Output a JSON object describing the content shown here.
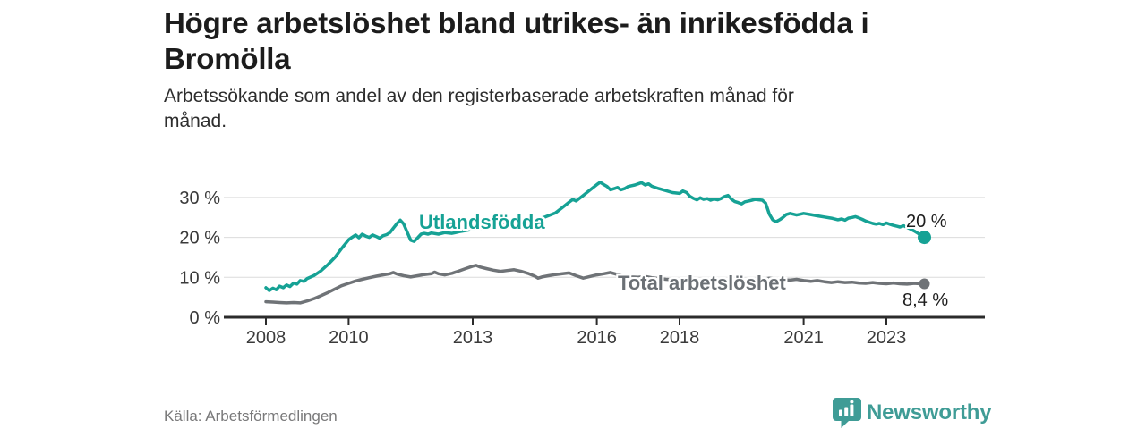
{
  "header": {
    "title_lines": [
      "Högre arbetslöshet bland utrikes- än inrikesfödda i",
      "Bromölla"
    ],
    "subtitle_lines": [
      "Arbetssökande som andel av den registerbaserade arbetskraften månad för",
      "månad."
    ]
  },
  "footer": {
    "source": "Källa: Arbetsförmedlingen",
    "brand": "Newsworthy",
    "logo_icon": "speech-bubble-bar-chart-icon"
  },
  "colors": {
    "foreign_series": "#16a295",
    "total_series": "#6f7377",
    "axis": "#2b2b2b",
    "gridline": "#dcdcdc",
    "title_text": "#1c1c1c",
    "muted_text": "#79797a",
    "brand_teal": "#3f9c96"
  },
  "chart_data": {
    "type": "line",
    "title": "Högre arbetslöshet bland utrikes- än inrikesfödda i Bromölla",
    "subtitle": "Arbetssökande som andel av den registerbaserade arbetskraften månad för månad.",
    "source": "Källa: Arbetsförmedlingen",
    "grid": true,
    "legend_position": "inline-on-line",
    "x_axis": {
      "unit": "year",
      "range": [
        2007.0,
        2024.4
      ],
      "ticks": [
        {
          "value": 2008,
          "label": "2008"
        },
        {
          "value": 2010,
          "label": "2010"
        },
        {
          "value": 2013,
          "label": "2013"
        },
        {
          "value": 2016,
          "label": "2016"
        },
        {
          "value": 2018,
          "label": "2018"
        },
        {
          "value": 2021,
          "label": "2021"
        },
        {
          "value": 2023,
          "label": "2023"
        }
      ]
    },
    "y_axis": {
      "unit": "percent",
      "range": [
        0,
        37
      ],
      "ticks": [
        {
          "value": 0,
          "label": "0 %"
        },
        {
          "value": 10,
          "label": "10 %"
        },
        {
          "value": 20,
          "label": "20 %"
        },
        {
          "value": 30,
          "label": "30 %"
        }
      ]
    },
    "series": [
      {
        "name": "Utlandsfödda",
        "color": "#16a295",
        "end_label": "20 %",
        "end_value": 20,
        "points": [
          [
            2008.0,
            7.4
          ],
          [
            2008.08,
            6.7
          ],
          [
            2008.17,
            7.3
          ],
          [
            2008.25,
            6.9
          ],
          [
            2008.33,
            7.8
          ],
          [
            2008.42,
            7.4
          ],
          [
            2008.5,
            8.1
          ],
          [
            2008.58,
            7.7
          ],
          [
            2008.67,
            8.6
          ],
          [
            2008.75,
            8.3
          ],
          [
            2008.83,
            9.2
          ],
          [
            2008.92,
            9.0
          ],
          [
            2009.0,
            9.7
          ],
          [
            2009.17,
            10.5
          ],
          [
            2009.33,
            11.6
          ],
          [
            2009.5,
            13.2
          ],
          [
            2009.67,
            15.0
          ],
          [
            2009.83,
            17.2
          ],
          [
            2010.0,
            19.4
          ],
          [
            2010.08,
            20.0
          ],
          [
            2010.17,
            20.6
          ],
          [
            2010.25,
            19.9
          ],
          [
            2010.33,
            20.8
          ],
          [
            2010.42,
            20.3
          ],
          [
            2010.5,
            20.0
          ],
          [
            2010.58,
            20.6
          ],
          [
            2010.67,
            20.2
          ],
          [
            2010.75,
            19.8
          ],
          [
            2010.83,
            20.4
          ],
          [
            2010.92,
            20.7
          ],
          [
            2011.0,
            21.2
          ],
          [
            2011.08,
            22.3
          ],
          [
            2011.17,
            23.5
          ],
          [
            2011.25,
            24.3
          ],
          [
            2011.33,
            23.4
          ],
          [
            2011.42,
            21.2
          ],
          [
            2011.5,
            19.3
          ],
          [
            2011.58,
            19.0
          ],
          [
            2011.67,
            19.9
          ],
          [
            2011.75,
            20.8
          ],
          [
            2011.83,
            21.0
          ],
          [
            2011.92,
            20.8
          ],
          [
            2012.0,
            21.1
          ],
          [
            2012.17,
            20.8
          ],
          [
            2012.33,
            21.2
          ],
          [
            2012.5,
            21.0
          ],
          [
            2012.67,
            21.4
          ],
          [
            2012.83,
            21.7
          ],
          [
            2013.0,
            22.0
          ],
          [
            2013.25,
            22.3
          ],
          [
            2013.5,
            22.8
          ],
          [
            2013.75,
            23.2
          ],
          [
            2014.0,
            23.5
          ],
          [
            2014.25,
            23.9
          ],
          [
            2014.5,
            24.4
          ],
          [
            2014.75,
            25.1
          ],
          [
            2015.0,
            26.1
          ],
          [
            2015.17,
            27.5
          ],
          [
            2015.33,
            28.8
          ],
          [
            2015.42,
            29.5
          ],
          [
            2015.5,
            29.1
          ],
          [
            2015.67,
            30.5
          ],
          [
            2015.83,
            31.8
          ],
          [
            2016.0,
            33.2
          ],
          [
            2016.08,
            33.8
          ],
          [
            2016.17,
            33.2
          ],
          [
            2016.25,
            32.7
          ],
          [
            2016.33,
            31.9
          ],
          [
            2016.42,
            32.2
          ],
          [
            2016.5,
            32.5
          ],
          [
            2016.58,
            31.9
          ],
          [
            2016.67,
            32.2
          ],
          [
            2016.75,
            32.7
          ],
          [
            2016.83,
            32.9
          ],
          [
            2016.92,
            33.1
          ],
          [
            2017.0,
            33.4
          ],
          [
            2017.08,
            33.7
          ],
          [
            2017.17,
            33.1
          ],
          [
            2017.25,
            33.4
          ],
          [
            2017.33,
            32.8
          ],
          [
            2017.5,
            32.2
          ],
          [
            2017.67,
            31.7
          ],
          [
            2017.83,
            31.2
          ],
          [
            2018.0,
            31.0
          ],
          [
            2018.08,
            31.6
          ],
          [
            2018.17,
            31.2
          ],
          [
            2018.25,
            30.3
          ],
          [
            2018.33,
            29.8
          ],
          [
            2018.42,
            29.4
          ],
          [
            2018.5,
            29.9
          ],
          [
            2018.58,
            29.5
          ],
          [
            2018.67,
            29.7
          ],
          [
            2018.75,
            29.3
          ],
          [
            2018.83,
            29.6
          ],
          [
            2018.92,
            29.4
          ],
          [
            2019.0,
            29.7
          ],
          [
            2019.08,
            30.2
          ],
          [
            2019.17,
            30.5
          ],
          [
            2019.25,
            29.6
          ],
          [
            2019.33,
            29.0
          ],
          [
            2019.42,
            28.7
          ],
          [
            2019.5,
            28.4
          ],
          [
            2019.58,
            28.9
          ],
          [
            2019.67,
            29.1
          ],
          [
            2019.75,
            29.3
          ],
          [
            2019.83,
            29.5
          ],
          [
            2019.92,
            29.4
          ],
          [
            2020.0,
            29.3
          ],
          [
            2020.08,
            28.6
          ],
          [
            2020.17,
            25.8
          ],
          [
            2020.25,
            24.4
          ],
          [
            2020.33,
            23.9
          ],
          [
            2020.42,
            24.4
          ],
          [
            2020.5,
            25.0
          ],
          [
            2020.58,
            25.7
          ],
          [
            2020.67,
            26.0
          ],
          [
            2020.75,
            25.8
          ],
          [
            2020.83,
            25.6
          ],
          [
            2020.92,
            25.8
          ],
          [
            2021.0,
            26.0
          ],
          [
            2021.17,
            25.7
          ],
          [
            2021.33,
            25.4
          ],
          [
            2021.5,
            25.1
          ],
          [
            2021.67,
            24.8
          ],
          [
            2021.83,
            24.4
          ],
          [
            2021.92,
            24.6
          ],
          [
            2022.0,
            24.3
          ],
          [
            2022.08,
            24.8
          ],
          [
            2022.17,
            25.0
          ],
          [
            2022.25,
            25.2
          ],
          [
            2022.33,
            24.9
          ],
          [
            2022.42,
            24.5
          ],
          [
            2022.5,
            24.1
          ],
          [
            2022.58,
            23.8
          ],
          [
            2022.67,
            23.5
          ],
          [
            2022.75,
            23.3
          ],
          [
            2022.83,
            23.5
          ],
          [
            2022.92,
            23.2
          ],
          [
            2023.0,
            23.6
          ],
          [
            2023.08,
            23.3
          ],
          [
            2023.17,
            23.0
          ],
          [
            2023.25,
            22.8
          ],
          [
            2023.33,
            22.6
          ],
          [
            2023.42,
            22.9
          ],
          [
            2023.5,
            22.5
          ],
          [
            2023.58,
            22.1
          ],
          [
            2023.67,
            21.6
          ],
          [
            2023.75,
            21.1
          ],
          [
            2023.83,
            20.6
          ],
          [
            2023.92,
            20.0
          ]
        ]
      },
      {
        "name": "Total arbetslöshet",
        "color": "#6f7377",
        "end_label": "8,4 %",
        "end_value": 8.4,
        "points": [
          [
            2008.0,
            3.9
          ],
          [
            2008.17,
            3.8
          ],
          [
            2008.33,
            3.7
          ],
          [
            2008.5,
            3.6
          ],
          [
            2008.67,
            3.7
          ],
          [
            2008.83,
            3.6
          ],
          [
            2009.0,
            4.1
          ],
          [
            2009.17,
            4.7
          ],
          [
            2009.33,
            5.4
          ],
          [
            2009.5,
            6.2
          ],
          [
            2009.67,
            7.1
          ],
          [
            2009.83,
            7.9
          ],
          [
            2010.0,
            8.5
          ],
          [
            2010.17,
            9.1
          ],
          [
            2010.33,
            9.5
          ],
          [
            2010.5,
            9.9
          ],
          [
            2010.67,
            10.3
          ],
          [
            2010.83,
            10.6
          ],
          [
            2011.0,
            10.9
          ],
          [
            2011.08,
            11.2
          ],
          [
            2011.17,
            10.8
          ],
          [
            2011.33,
            10.4
          ],
          [
            2011.5,
            10.1
          ],
          [
            2011.67,
            10.4
          ],
          [
            2011.83,
            10.7
          ],
          [
            2012.0,
            10.9
          ],
          [
            2012.08,
            11.3
          ],
          [
            2012.17,
            10.9
          ],
          [
            2012.33,
            10.6
          ],
          [
            2012.5,
            11.0
          ],
          [
            2012.67,
            11.6
          ],
          [
            2012.83,
            12.2
          ],
          [
            2013.0,
            12.8
          ],
          [
            2013.08,
            13.0
          ],
          [
            2013.17,
            12.6
          ],
          [
            2013.33,
            12.2
          ],
          [
            2013.5,
            11.8
          ],
          [
            2013.67,
            11.5
          ],
          [
            2013.83,
            11.7
          ],
          [
            2014.0,
            11.9
          ],
          [
            2014.17,
            11.5
          ],
          [
            2014.33,
            11.0
          ],
          [
            2014.5,
            10.3
          ],
          [
            2014.58,
            9.8
          ],
          [
            2014.67,
            10.1
          ],
          [
            2014.83,
            10.4
          ],
          [
            2015.0,
            10.7
          ],
          [
            2015.17,
            10.9
          ],
          [
            2015.33,
            11.1
          ],
          [
            2015.5,
            10.4
          ],
          [
            2015.67,
            9.8
          ],
          [
            2015.83,
            10.2
          ],
          [
            2016.0,
            10.6
          ],
          [
            2016.17,
            10.9
          ],
          [
            2016.33,
            11.2
          ],
          [
            2016.5,
            10.7
          ],
          [
            2016.67,
            10.3
          ],
          [
            2016.83,
            10.1
          ],
          [
            2017.0,
            10.0
          ],
          [
            2017.17,
            10.2
          ],
          [
            2017.33,
            9.9
          ],
          [
            2017.5,
            9.7
          ],
          [
            2017.67,
            9.5
          ],
          [
            2017.83,
            9.4
          ],
          [
            2018.0,
            9.3
          ],
          [
            2018.17,
            9.5
          ],
          [
            2018.33,
            9.2
          ],
          [
            2018.5,
            9.0
          ],
          [
            2018.67,
            9.2
          ],
          [
            2018.83,
            9.0
          ],
          [
            2019.0,
            8.9
          ],
          [
            2019.17,
            9.1
          ],
          [
            2019.33,
            8.9
          ],
          [
            2019.5,
            8.8
          ],
          [
            2019.67,
            9.0
          ],
          [
            2019.83,
            9.2
          ],
          [
            2020.0,
            9.5
          ],
          [
            2020.17,
            9.8
          ],
          [
            2020.33,
            9.6
          ],
          [
            2020.5,
            9.4
          ],
          [
            2020.67,
            9.3
          ],
          [
            2020.83,
            9.5
          ],
          [
            2021.0,
            9.2
          ],
          [
            2021.17,
            9.0
          ],
          [
            2021.33,
            9.2
          ],
          [
            2021.5,
            8.9
          ],
          [
            2021.67,
            8.7
          ],
          [
            2021.83,
            8.9
          ],
          [
            2022.0,
            8.7
          ],
          [
            2022.17,
            8.8
          ],
          [
            2022.33,
            8.6
          ],
          [
            2022.5,
            8.5
          ],
          [
            2022.67,
            8.7
          ],
          [
            2022.83,
            8.5
          ],
          [
            2023.0,
            8.4
          ],
          [
            2023.17,
            8.6
          ],
          [
            2023.33,
            8.4
          ],
          [
            2023.5,
            8.3
          ],
          [
            2023.67,
            8.5
          ],
          [
            2023.83,
            8.4
          ],
          [
            2023.92,
            8.4
          ]
        ]
      }
    ]
  }
}
